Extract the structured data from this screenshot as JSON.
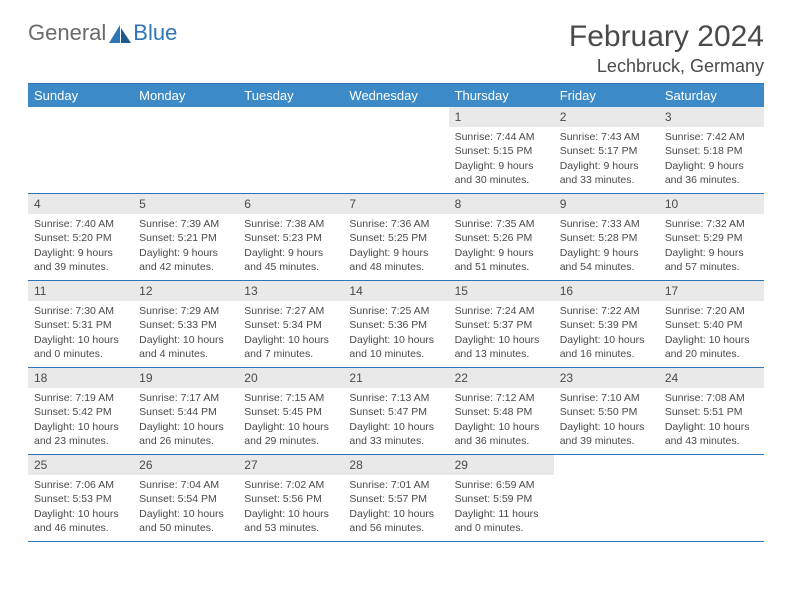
{
  "logo": {
    "general": "General",
    "blue": "Blue"
  },
  "title": "February 2024",
  "location": "Lechbruck, Germany",
  "colors": {
    "header_bg": "#3c8ac8",
    "border": "#2d75b6",
    "daynum_bg": "#e9e9e9",
    "text": "#4a4a4a",
    "white": "#ffffff"
  },
  "weekdays": [
    "Sunday",
    "Monday",
    "Tuesday",
    "Wednesday",
    "Thursday",
    "Friday",
    "Saturday"
  ],
  "weeks": [
    [
      null,
      null,
      null,
      null,
      {
        "n": "1",
        "sr": "7:44 AM",
        "ss": "5:15 PM",
        "dl": "9 hours and 30 minutes."
      },
      {
        "n": "2",
        "sr": "7:43 AM",
        "ss": "5:17 PM",
        "dl": "9 hours and 33 minutes."
      },
      {
        "n": "3",
        "sr": "7:42 AM",
        "ss": "5:18 PM",
        "dl": "9 hours and 36 minutes."
      }
    ],
    [
      {
        "n": "4",
        "sr": "7:40 AM",
        "ss": "5:20 PM",
        "dl": "9 hours and 39 minutes."
      },
      {
        "n": "5",
        "sr": "7:39 AM",
        "ss": "5:21 PM",
        "dl": "9 hours and 42 minutes."
      },
      {
        "n": "6",
        "sr": "7:38 AM",
        "ss": "5:23 PM",
        "dl": "9 hours and 45 minutes."
      },
      {
        "n": "7",
        "sr": "7:36 AM",
        "ss": "5:25 PM",
        "dl": "9 hours and 48 minutes."
      },
      {
        "n": "8",
        "sr": "7:35 AM",
        "ss": "5:26 PM",
        "dl": "9 hours and 51 minutes."
      },
      {
        "n": "9",
        "sr": "7:33 AM",
        "ss": "5:28 PM",
        "dl": "9 hours and 54 minutes."
      },
      {
        "n": "10",
        "sr": "7:32 AM",
        "ss": "5:29 PM",
        "dl": "9 hours and 57 minutes."
      }
    ],
    [
      {
        "n": "11",
        "sr": "7:30 AM",
        "ss": "5:31 PM",
        "dl": "10 hours and 0 minutes."
      },
      {
        "n": "12",
        "sr": "7:29 AM",
        "ss": "5:33 PM",
        "dl": "10 hours and 4 minutes."
      },
      {
        "n": "13",
        "sr": "7:27 AM",
        "ss": "5:34 PM",
        "dl": "10 hours and 7 minutes."
      },
      {
        "n": "14",
        "sr": "7:25 AM",
        "ss": "5:36 PM",
        "dl": "10 hours and 10 minutes."
      },
      {
        "n": "15",
        "sr": "7:24 AM",
        "ss": "5:37 PM",
        "dl": "10 hours and 13 minutes."
      },
      {
        "n": "16",
        "sr": "7:22 AM",
        "ss": "5:39 PM",
        "dl": "10 hours and 16 minutes."
      },
      {
        "n": "17",
        "sr": "7:20 AM",
        "ss": "5:40 PM",
        "dl": "10 hours and 20 minutes."
      }
    ],
    [
      {
        "n": "18",
        "sr": "7:19 AM",
        "ss": "5:42 PM",
        "dl": "10 hours and 23 minutes."
      },
      {
        "n": "19",
        "sr": "7:17 AM",
        "ss": "5:44 PM",
        "dl": "10 hours and 26 minutes."
      },
      {
        "n": "20",
        "sr": "7:15 AM",
        "ss": "5:45 PM",
        "dl": "10 hours and 29 minutes."
      },
      {
        "n": "21",
        "sr": "7:13 AM",
        "ss": "5:47 PM",
        "dl": "10 hours and 33 minutes."
      },
      {
        "n": "22",
        "sr": "7:12 AM",
        "ss": "5:48 PM",
        "dl": "10 hours and 36 minutes."
      },
      {
        "n": "23",
        "sr": "7:10 AM",
        "ss": "5:50 PM",
        "dl": "10 hours and 39 minutes."
      },
      {
        "n": "24",
        "sr": "7:08 AM",
        "ss": "5:51 PM",
        "dl": "10 hours and 43 minutes."
      }
    ],
    [
      {
        "n": "25",
        "sr": "7:06 AM",
        "ss": "5:53 PM",
        "dl": "10 hours and 46 minutes."
      },
      {
        "n": "26",
        "sr": "7:04 AM",
        "ss": "5:54 PM",
        "dl": "10 hours and 50 minutes."
      },
      {
        "n": "27",
        "sr": "7:02 AM",
        "ss": "5:56 PM",
        "dl": "10 hours and 53 minutes."
      },
      {
        "n": "28",
        "sr": "7:01 AM",
        "ss": "5:57 PM",
        "dl": "10 hours and 56 minutes."
      },
      {
        "n": "29",
        "sr": "6:59 AM",
        "ss": "5:59 PM",
        "dl": "11 hours and 0 minutes."
      },
      null,
      null
    ]
  ],
  "labels": {
    "sunrise": "Sunrise: ",
    "sunset": "Sunset: ",
    "daylight": "Daylight: "
  }
}
